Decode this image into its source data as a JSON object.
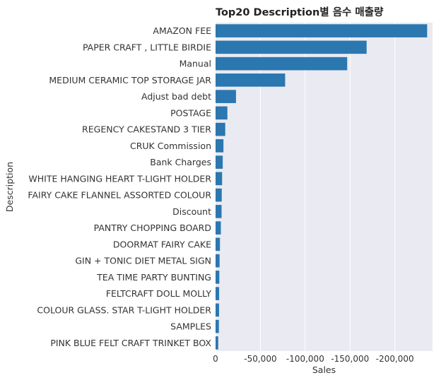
{
  "chart_data": {
    "type": "bar",
    "orientation": "horizontal",
    "title": "Top20 Description별 음수 매출량",
    "xlabel": "Sales",
    "ylabel": "Description",
    "categories": [
      "AMAZON FEE",
      "PAPER CRAFT , LITTLE BIRDIE",
      "Manual",
      "MEDIUM CERAMIC TOP STORAGE JAR",
      "Adjust bad debt",
      "POSTAGE",
      "REGENCY CAKESTAND 3 TIER",
      "CRUK Commission",
      "Bank Charges",
      "WHITE HANGING HEART T-LIGHT HOLDER",
      "FAIRY CAKE FLANNEL ASSORTED COLOUR",
      "Discount",
      "PANTRY CHOPPING BOARD",
      "DOORMAT FAIRY CAKE",
      "GIN + TONIC DIET METAL SIGN",
      "TEA TIME PARTY BUNTING",
      "FELTCRAFT DOLL MOLLY",
      "COLOUR GLASS. STAR T-LIGHT HOLDER",
      "SAMPLES",
      "PINK BLUE FELT CRAFT TRINKET BOX"
    ],
    "values": [
      -236000,
      -168500,
      -146800,
      -77600,
      -22800,
      -13200,
      -10800,
      -8800,
      -8000,
      -7300,
      -6900,
      -6700,
      -5900,
      -4900,
      -4500,
      -4200,
      -4000,
      -3900,
      -3700,
      -3000
    ],
    "xlim": [
      0,
      -242000
    ],
    "xticks": [
      0,
      -50000,
      -100000,
      -150000,
      -200000
    ],
    "xtick_labels": [
      "0",
      "-50,000",
      "-100,000",
      "-150,000",
      "-200,000"
    ],
    "grid": true,
    "legend": "none",
    "colors": {
      "bar": "#2b77b0",
      "plot_background": "#eaeaf2",
      "grid": "#ffffff"
    }
  }
}
